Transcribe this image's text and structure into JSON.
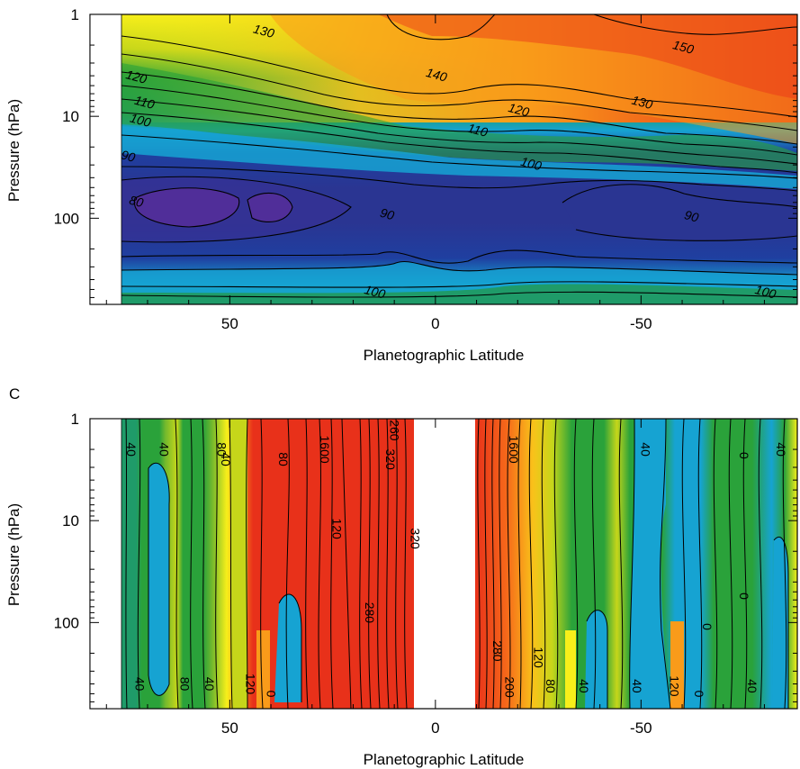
{
  "chart_data": [
    {
      "type": "heatmap",
      "panel_label": "",
      "xlabel": "Planetographic Latitude",
      "ylabel": "Pressure (hPa)",
      "x_ticks": [
        50,
        0,
        -50
      ],
      "y_ticks": [
        1,
        10,
        100
      ],
      "xlim": [
        84,
        -88
      ],
      "ylim": [
        1,
        700
      ],
      "y_scale": "log",
      "data_x_range": [
        76,
        -88
      ],
      "contour_levels": [
        80,
        90,
        100,
        110,
        120,
        130,
        140,
        150
      ],
      "contour_labels": [
        {
          "text": "130",
          "x": 42,
          "p": 1.6
        },
        {
          "text": "120",
          "x": 73,
          "p": 4.5
        },
        {
          "text": "110",
          "x": 71,
          "p": 8.0
        },
        {
          "text": "100",
          "x": 72,
          "p": 12.0
        },
        {
          "text": "90",
          "x": 75,
          "p": 27
        },
        {
          "text": "80",
          "x": 73,
          "p": 75
        },
        {
          "text": "140",
          "x": 0,
          "p": 4.3
        },
        {
          "text": "150",
          "x": -60,
          "p": 2.3
        },
        {
          "text": "130",
          "x": -50,
          "p": 8.0
        },
        {
          "text": "120",
          "x": -20,
          "p": 9.5
        },
        {
          "text": "110",
          "x": -10,
          "p": 15
        },
        {
          "text": "100",
          "x": -23,
          "p": 32
        },
        {
          "text": "90",
          "x": 12,
          "p": 100
        },
        {
          "text": "90",
          "x": -62,
          "p": 105
        },
        {
          "text": "100",
          "x": 15,
          "p": 580
        },
        {
          "text": "100",
          "x": -80,
          "p": 580
        }
      ]
    },
    {
      "type": "heatmap",
      "panel_label": "C",
      "xlabel": "Planetographic Latitude",
      "ylabel": "Pressure (hPa)",
      "x_ticks": [
        50,
        0,
        -50
      ],
      "y_ticks": [
        1,
        10,
        100
      ],
      "xlim": [
        84,
        -88
      ],
      "ylim": [
        1,
        700
      ],
      "y_scale": "log",
      "data_x_range": [
        76,
        -88
      ],
      "no_data_band": [
        8,
        -8
      ],
      "contour_labels": [
        {
          "text": "40",
          "x": 75,
          "p": 2.0
        },
        {
          "text": "40",
          "x": 67,
          "p": 2.0
        },
        {
          "text": "80",
          "x": 53,
          "p": 2.0
        },
        {
          "text": "40",
          "x": 52,
          "p": 2.5
        },
        {
          "text": "80",
          "x": 38,
          "p": 2.5
        },
        {
          "text": "1600",
          "x": 28,
          "p": 2.0
        },
        {
          "text": "260",
          "x": 11,
          "p": 1.3
        },
        {
          "text": "320",
          "x": 12,
          "p": 2.5
        },
        {
          "text": "120",
          "x": 25,
          "p": 12
        },
        {
          "text": "280",
          "x": 17,
          "p": 80
        },
        {
          "text": "320",
          "x": 6,
          "p": 15
        },
        {
          "text": "1600",
          "x": -18,
          "p": 2.0
        },
        {
          "text": "40",
          "x": -50,
          "p": 2.0
        },
        {
          "text": "0",
          "x": -74,
          "p": 2.3
        },
        {
          "text": "40",
          "x": -83,
          "p": 2.0
        },
        {
          "text": "0",
          "x": -74,
          "p": 55
        },
        {
          "text": "0",
          "x": -65,
          "p": 110
        },
        {
          "text": "280",
          "x": -14,
          "p": 190
        },
        {
          "text": "120",
          "x": -24,
          "p": 220
        },
        {
          "text": "40",
          "x": 73,
          "p": 400
        },
        {
          "text": "80",
          "x": 62,
          "p": 400
        },
        {
          "text": "40",
          "x": 56,
          "p": 400
        },
        {
          "text": "120",
          "x": 46,
          "p": 400
        },
        {
          "text": "0",
          "x": 41,
          "p": 500
        },
        {
          "text": "200",
          "x": -17,
          "p": 430
        },
        {
          "text": "80",
          "x": -27,
          "p": 420
        },
        {
          "text": "40",
          "x": -35,
          "p": 420
        },
        {
          "text": "40",
          "x": -48,
          "p": 420
        },
        {
          "text": "120",
          "x": -57,
          "p": 420
        },
        {
          "text": "0",
          "x": -63,
          "p": 500
        },
        {
          "text": "40",
          "x": -76,
          "p": 420
        }
      ]
    }
  ],
  "colors": {
    "purple": "#6b2d9e",
    "dark_blue": "#1f3fa0",
    "navy": "#2a3592",
    "blue": "#1b5fb8",
    "cyan": "#16a3d2",
    "teal_green": "#1f9b69",
    "green": "#2aa23a",
    "light_green": "#73b92d",
    "yellow_green": "#c6d61a",
    "yellow": "#f7ef1a",
    "orange_yellow": "#f9c21a",
    "orange": "#f99b1a",
    "red_orange": "#f66a1a",
    "red": "#e8311a"
  }
}
